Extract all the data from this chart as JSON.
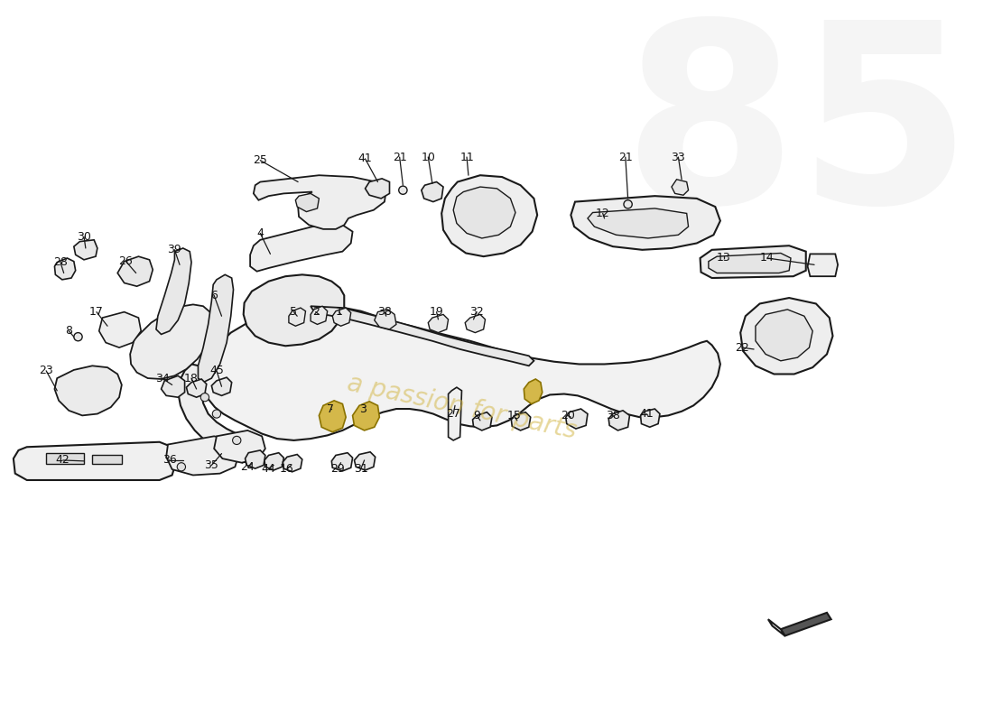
{
  "background_color": "#ffffff",
  "watermark_text": "a passion for parts",
  "watermark_color": "#d4b84a",
  "watermark_alpha": 0.55,
  "logo_color": "#d8d8d8",
  "logo_alpha": 0.25,
  "line_color": "#1a1a1a",
  "fill_light": "#f0f0f0",
  "fill_mid": "#e8e8e8",
  "fill_dark": "#dddddd",
  "highlight_color": "#d4b84a",
  "figsize": [
    11.0,
    8.0
  ],
  "dpi": 100,
  "labels": [
    [
      "25",
      310,
      122
    ],
    [
      "41",
      435,
      122
    ],
    [
      "21",
      476,
      130
    ],
    [
      "10",
      510,
      130
    ],
    [
      "11",
      556,
      130
    ],
    [
      "21",
      745,
      122
    ],
    [
      "33",
      808,
      122
    ],
    [
      "12",
      718,
      195
    ],
    [
      "13",
      860,
      240
    ],
    [
      "14",
      910,
      240
    ],
    [
      "26",
      158,
      248
    ],
    [
      "39",
      210,
      235
    ],
    [
      "4",
      313,
      215
    ],
    [
      "30",
      104,
      215
    ],
    [
      "28",
      76,
      248
    ],
    [
      "6",
      260,
      295
    ],
    [
      "8",
      88,
      330
    ],
    [
      "17",
      120,
      310
    ],
    [
      "5",
      355,
      310
    ],
    [
      "2",
      382,
      310
    ],
    [
      "1",
      408,
      310
    ],
    [
      "38",
      462,
      310
    ],
    [
      "19",
      525,
      310
    ],
    [
      "32",
      572,
      310
    ],
    [
      "23",
      60,
      380
    ],
    [
      "34",
      198,
      388
    ],
    [
      "18",
      232,
      388
    ],
    [
      "45",
      262,
      380
    ],
    [
      "27",
      547,
      438
    ],
    [
      "9",
      574,
      438
    ],
    [
      "15",
      619,
      438
    ],
    [
      "20",
      682,
      438
    ],
    [
      "38",
      736,
      438
    ],
    [
      "41",
      776,
      438
    ],
    [
      "22",
      888,
      355
    ],
    [
      "7",
      400,
      430
    ],
    [
      "3",
      436,
      430
    ],
    [
      "31",
      434,
      500
    ],
    [
      "29",
      408,
      500
    ],
    [
      "16",
      348,
      500
    ],
    [
      "44",
      326,
      500
    ],
    [
      "24",
      300,
      500
    ],
    [
      "35",
      258,
      496
    ],
    [
      "36",
      208,
      492
    ],
    [
      "42",
      82,
      490
    ]
  ]
}
